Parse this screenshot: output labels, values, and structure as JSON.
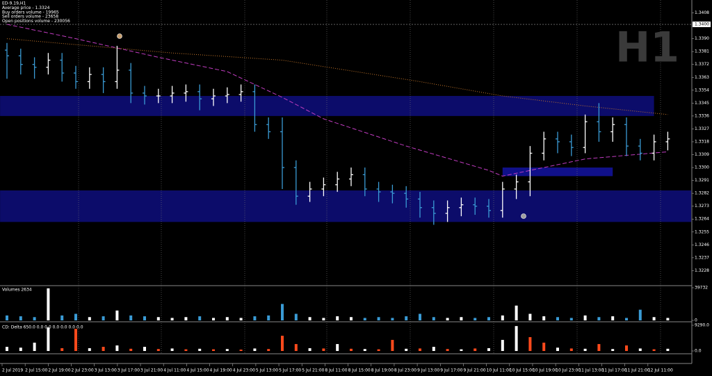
{
  "chart_data": [
    {
      "type": "ohlc",
      "info_lines": [
        "ED-9.19,H1",
        "Average price - 1.3324",
        "Buy orders volume - 19965",
        "Sell orders volume - 23658",
        "Open positions volume - 230056"
      ],
      "watermark": "H1",
      "x_labels": [
        "2 Jul 2019",
        "2 Jul 15:00",
        "2 Jul 19:00",
        "2 Jul 23:00",
        "3 Jul 13:00",
        "3 Jul 17:00",
        "3 Jul 21:00",
        "4 Jul 11:00",
        "4 Jul 15:00",
        "4 Jul 19:00",
        "4 Jul 23:00",
        "5 Jul 13:00",
        "5 Jul 17:00",
        "5 Jul 21:00",
        "8 Jul 11:00",
        "8 Jul 15:00",
        "8 Jul 19:00",
        "8 Jul 23:00",
        "9 Jul 13:00",
        "9 Jul 17:00",
        "9 Jul 21:00",
        "10 Jul 11:00",
        "10 Jul 15:00",
        "10 Jul 19:00",
        "10 Jul 23:00",
        "11 Jul 13:00",
        "11 Jul 17:00",
        "11 Jul 21:00",
        "12 Jul 11:00"
      ],
      "open": [
        1.3382,
        1.3378,
        1.3372,
        1.337,
        1.3375,
        1.3366,
        1.336,
        1.3365,
        1.336,
        1.3368,
        1.3352,
        1.335,
        1.335,
        1.3352,
        1.3353,
        1.3348,
        1.335,
        1.3351,
        1.3353,
        1.333,
        1.3325,
        1.33,
        1.328,
        1.3285,
        1.3288,
        1.3292,
        1.3295,
        1.3285,
        1.3283,
        1.3282,
        1.3278,
        1.3272,
        1.3268,
        1.3272,
        1.3274,
        1.3273,
        1.327,
        1.3285,
        1.329,
        1.331,
        1.332,
        1.3318,
        1.3314,
        1.3332,
        1.3325,
        1.333,
        1.3315,
        1.331,
        1.3318
      ],
      "high": [
        1.3387,
        1.3383,
        1.3377,
        1.338,
        1.338,
        1.3371,
        1.337,
        1.337,
        1.3385,
        1.3373,
        1.3357,
        1.3355,
        1.3357,
        1.3358,
        1.3358,
        1.3355,
        1.3356,
        1.3358,
        1.3358,
        1.3335,
        1.3335,
        1.3305,
        1.329,
        1.3293,
        1.3297,
        1.33,
        1.33,
        1.329,
        1.3288,
        1.3287,
        1.3283,
        1.3277,
        1.3277,
        1.3279,
        1.3279,
        1.3278,
        1.329,
        1.3295,
        1.3315,
        1.3325,
        1.3325,
        1.3323,
        1.3337,
        1.3345,
        1.3335,
        1.3335,
        1.332,
        1.3323,
        1.3325
      ],
      "low": [
        1.3362,
        1.3365,
        1.3362,
        1.3365,
        1.336,
        1.3355,
        1.3355,
        1.3352,
        1.3355,
        1.3345,
        1.3344,
        1.3345,
        1.3345,
        1.3346,
        1.334,
        1.3343,
        1.3345,
        1.3346,
        1.3325,
        1.332,
        1.3285,
        1.3274,
        1.3276,
        1.328,
        1.3283,
        1.3287,
        1.328,
        1.3276,
        1.3275,
        1.3272,
        1.3265,
        1.326,
        1.3262,
        1.3266,
        1.3267,
        1.3265,
        1.3265,
        1.3278,
        1.328,
        1.3305,
        1.331,
        1.3308,
        1.331,
        1.3318,
        1.3318,
        1.3308,
        1.3305,
        1.3305,
        1.3312
      ],
      "close": [
        1.3378,
        1.3372,
        1.337,
        1.3375,
        1.3366,
        1.336,
        1.3365,
        1.336,
        1.3368,
        1.3352,
        1.335,
        1.335,
        1.3352,
        1.3353,
        1.3348,
        1.335,
        1.3351,
        1.3353,
        1.333,
        1.3325,
        1.33,
        1.328,
        1.3285,
        1.3288,
        1.3292,
        1.3295,
        1.3285,
        1.3283,
        1.3282,
        1.3278,
        1.3272,
        1.3268,
        1.3272,
        1.3274,
        1.3273,
        1.327,
        1.3285,
        1.329,
        1.331,
        1.332,
        1.3318,
        1.3314,
        1.3332,
        1.3325,
        1.333,
        1.3315,
        1.331,
        1.3318,
        1.332
      ],
      "up_color": "#ffffff",
      "down_color": "#3a9bd5",
      "overlays": [
        {
          "color": "#c03cc0",
          "style": "dashed",
          "x": [
            0,
            5,
            11,
            16,
            20,
            23,
            29,
            35,
            36,
            39,
            42,
            48
          ],
          "values": [
            1.34,
            1.339,
            1.3377,
            1.3367,
            1.3349,
            1.3334,
            1.3315,
            1.3298,
            1.3294,
            1.33,
            1.3306,
            1.3311
          ]
        },
        {
          "color": "#c8782a",
          "style": "dotted",
          "x": [
            0,
            12,
            20,
            30,
            36,
            42,
            48
          ],
          "values": [
            1.339,
            1.338,
            1.3375,
            1.336,
            1.335,
            1.3343,
            1.3337
          ]
        }
      ],
      "zones": [
        {
          "from": 1.3336,
          "to": 1.335,
          "start": -0.5,
          "end": 47,
          "color": "#0c0c6a"
        },
        {
          "from": 1.3262,
          "to": 1.3284,
          "start": -0.5,
          "end": 49.7,
          "color": "#0c0c6a"
        },
        {
          "from": 1.3294,
          "to": 1.33,
          "start": 36,
          "end": 44,
          "color": "#10108a"
        }
      ],
      "current_price": {
        "value": 1.34,
        "label": "1.3400"
      },
      "ylim": [
        1.3218,
        1.3417
      ],
      "yticks": [
        {
          "value": 1.3408,
          "label": "1.3408"
        },
        {
          "value": 1.339,
          "label": "1.3390"
        },
        {
          "value": 1.3381,
          "label": "1.3381"
        },
        {
          "value": 1.3372,
          "label": "1.3372"
        },
        {
          "value": 1.3363,
          "label": "1.3363"
        },
        {
          "value": 1.3354,
          "label": "1.3354"
        },
        {
          "value": 1.3345,
          "label": "1.3345"
        },
        {
          "value": 1.3336,
          "label": "1.3336"
        },
        {
          "value": 1.3327,
          "label": "1.3327"
        },
        {
          "value": 1.3318,
          "label": "1.3318"
        },
        {
          "value": 1.3309,
          "label": "1.3309"
        },
        {
          "value": 1.33,
          "label": "1.3300"
        },
        {
          "value": 1.3291,
          "label": "1.3291"
        },
        {
          "value": 1.3282,
          "label": "1.3282"
        },
        {
          "value": 1.3273,
          "label": "1.3273"
        },
        {
          "value": 1.3264,
          "label": "1.3264"
        },
        {
          "value": 1.3255,
          "label": "1.3255"
        },
        {
          "value": 1.3246,
          "label": "1.3246"
        },
        {
          "value": 1.3237,
          "label": "1.3237"
        },
        {
          "value": 1.3228,
          "label": "1.3228"
        }
      ]
    },
    {
      "type": "bar",
      "title": "Volumes 2634",
      "values": [
        6000,
        5000,
        4000,
        39000,
        6000,
        8000,
        4000,
        5000,
        12000,
        6000,
        5000,
        4000,
        3000,
        4000,
        5000,
        3000,
        4000,
        3000,
        5000,
        6000,
        20000,
        8000,
        4000,
        3000,
        5000,
        4000,
        3000,
        4000,
        3000,
        5000,
        8000,
        4000,
        3000,
        4000,
        3000,
        4000,
        6000,
        18000,
        8000,
        5000,
        4000,
        3000,
        6000,
        4000,
        5000,
        3000,
        13000,
        4000,
        3000
      ],
      "ylim": [
        0,
        39732
      ],
      "yticks": [
        39732,
        0
      ]
    },
    {
      "type": "bar",
      "title": "CD: Delta 650.0 0.0 0.0 0.0 0.0 0.0 0.0",
      "series": [
        {
          "color": "#ffffff",
          "values": [
            1500,
            1200,
            3000,
            8500,
            null,
            null,
            1000,
            null,
            2000,
            null,
            1500,
            null,
            900,
            null,
            800,
            null,
            700,
            null,
            900,
            null,
            null,
            null,
            1000,
            null,
            2500,
            null,
            700,
            null,
            null,
            800,
            null,
            1500,
            null,
            600,
            null,
            1000,
            4000,
            9000,
            null,
            null,
            1200,
            null,
            800,
            null,
            700,
            null,
            900,
            null,
            800
          ]
        },
        {
          "color": "#ff4a1c",
          "values": [
            null,
            null,
            null,
            null,
            1000,
            8000,
            null,
            1500,
            null,
            800,
            null,
            700,
            null,
            600,
            null,
            600,
            null,
            500,
            null,
            700,
            5500,
            2500,
            null,
            900,
            null,
            800,
            null,
            600,
            4000,
            null,
            900,
            null,
            700,
            null,
            900,
            null,
            null,
            null,
            5000,
            3000,
            null,
            900,
            null,
            2500,
            null,
            2000,
            null,
            600,
            null
          ]
        }
      ],
      "ylim": [
        0,
        9290
      ],
      "yticks": [
        {
          "value": 9290,
          "label": "9290.0"
        },
        {
          "value": 0,
          "label": "0.0"
        }
      ]
    }
  ]
}
